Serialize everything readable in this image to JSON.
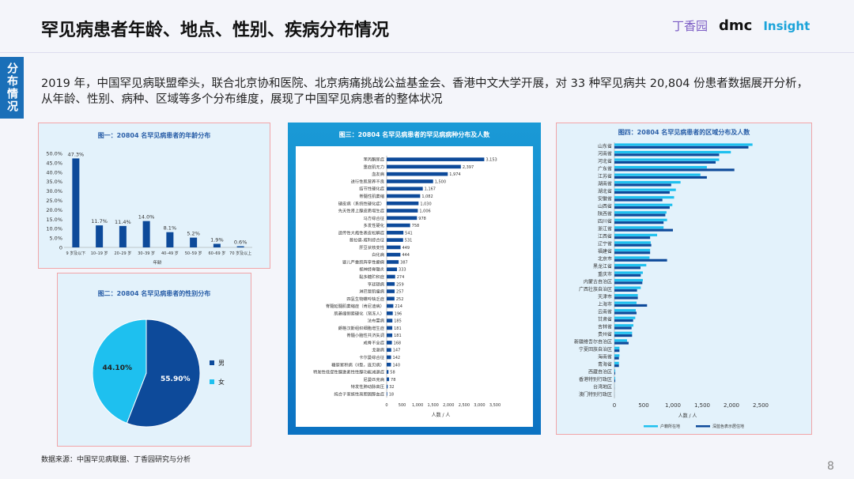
{
  "header": {
    "title": "罕见病患者年龄、地点、性别、疾病分布情况",
    "logos": [
      "丁香园",
      "dmc",
      "Insight"
    ]
  },
  "side_tab": "分布情况",
  "intro": "2019 年，中国罕见病联盟牵头，联合北京协和医院、北京病痛挑战公益基金会、香港中文大学开展，对 33 种罕见病共 20,804 份患者数据展开分析，从年龄、性别、病种、区域等多个分布维度，展现了中国罕见病患者的整体状况",
  "source": "数据来源：中国罕见病联盟、丁香园研究与分析",
  "page_number": "8",
  "colors": {
    "dark": "#0d4a9a",
    "light": "#1ec0ef",
    "accent": "#1a6fb8",
    "border": "#f1a5a8"
  },
  "chart_data": [
    {
      "type": "bar",
      "title": "图一：20804 名罕见病患者的年龄分布",
      "xlabel": "年龄",
      "ylim": [
        0,
        50
      ],
      "yticks": [
        "0",
        "5.0%",
        "10.0%",
        "15.0%",
        "20.0%",
        "25.0%",
        "30.0%",
        "35.0%",
        "40.0%",
        "45.0%",
        "50.0%"
      ],
      "categories": [
        "9 岁及以下",
        "10–19 岁",
        "20–29 岁",
        "30–39 岁",
        "40–49 岁",
        "50–59 岁",
        "60–69 岁",
        "70 岁及以上"
      ],
      "values": [
        47.3,
        11.7,
        11.4,
        14.0,
        8.1,
        5.2,
        1.9,
        0.6
      ],
      "labels": [
        "47.3%",
        "11.7%",
        "11.4%",
        "14.0%",
        "8.1%",
        "5.2%",
        "1.9%",
        "0.6%"
      ]
    },
    {
      "type": "pie",
      "title": "图二：20804 名罕见病患者的性别分布",
      "slices": [
        {
          "name": "男",
          "value": 55.9,
          "label": "55.90%",
          "color": "#0d4a9a"
        },
        {
          "name": "女",
          "value": 44.1,
          "label": "44.10%",
          "color": "#1ec0ef"
        }
      ]
    },
    {
      "type": "bar",
      "orientation": "horizontal",
      "title": "图三：20804 名罕见病患者的罕见病病种分布及人数",
      "xlabel": "人数 / 人",
      "xlim": [
        0,
        3500
      ],
      "xticks": [
        "0",
        "500",
        "1,000",
        "1,500",
        "2,000",
        "2,500",
        "3,000",
        "3,500"
      ],
      "categories": [
        "苯丙酮尿症",
        "重症肌无力",
        "血友病",
        "进行性肌营养不良",
        "结节性硬化症",
        "脊髓性肌萎缩",
        "硬皮病（系统性硬化症）",
        "先天性肾上腺皮质增生症",
        "马方综合征",
        "多发性硬化",
        "遗传性大疱性表皮松解症",
        "普拉德-威利综合征",
        "肝豆状核变性",
        "白化病",
        "婴儿严重肌阵挛性癫痫",
        "视神经脊髓炎",
        "黏多糖贮积症",
        "亨廷顿病",
        "淋巴管肌瘤病",
        "四氢生物蝶呤缺乏症",
        "脊髓延髓肌萎缩症（肯尼迪病）",
        "肌萎缩侧索硬化（渐冻人）",
        "法布雷病",
        "朗格汉斯组织细胞增生症",
        "脊髓小脑性共济失调",
        "成骨不全症",
        "戈谢病",
        "卡尔曼综合征",
        "糖原累积病（II型，庞贝病）",
        "特发性低促性腺激素性性腺功能减退症",
        "尼曼匹克病",
        "特发性肺动脉高压",
        "纯合子家族性高胆固醇血症"
      ],
      "values": [
        3153,
        2397,
        1974,
        1500,
        1167,
        1082,
        1030,
        1006,
        978,
        758,
        541,
        531,
        449,
        444,
        387,
        333,
        274,
        259,
        257,
        252,
        214,
        196,
        185,
        181,
        181,
        168,
        147,
        142,
        140,
        58,
        78,
        32,
        18
      ]
    },
    {
      "type": "bar",
      "orientation": "horizontal",
      "title": "图四：20804 名罕见病患者的区域分布及人数",
      "xlabel": "人数 / 人",
      "xlim": [
        0,
        2500
      ],
      "xticks": [
        "0",
        "500",
        "1,000",
        "1,500",
        "2,000",
        "2,500"
      ],
      "categories": [
        "山东省",
        "河南省",
        "河北省",
        "广东省",
        "江苏省",
        "湖南省",
        "湖北省",
        "安徽省",
        "山西省",
        "陕西省",
        "四川省",
        "浙江省",
        "江西省",
        "辽宁省",
        "福建省",
        "北京市",
        "黑龙江省",
        "重庆市",
        "内蒙古自治区",
        "广西壮族自治区",
        "天津市",
        "上海市",
        "云南省",
        "甘肃省",
        "吉林省",
        "贵州省",
        "新疆维吾尔自治区",
        "宁夏回族自治区",
        "海南省",
        "青海省",
        "西藏自治区",
        "香港特别行政区",
        "台湾地区",
        "澳门特别行政区"
      ],
      "series": [
        {
          "name": "户籍所在地",
          "color": "#1ec0ef",
          "values": [
            2360,
            1990,
            1790,
            1580,
            1470,
            1130,
            1050,
            1020,
            990,
            890,
            900,
            840,
            730,
            620,
            610,
            600,
            545,
            486,
            486,
            450,
            400,
            378,
            365,
            356,
            324,
            302,
            216,
            86,
            86,
            77,
            14,
            14,
            2,
            1
          ]
        },
        {
          "name": "深蓝色表示居住地",
          "color": "#0d4a9a",
          "values": [
            2290,
            1790,
            1730,
            2050,
            1580,
            970,
            945,
            820,
            945,
            870,
            840,
            1000,
            610,
            630,
            610,
            900,
            446,
            450,
            477,
            387,
            400,
            558,
            378,
            320,
            293,
            302,
            243,
            86,
            77,
            77,
            14,
            14,
            2,
            1
          ]
        }
      ]
    }
  ]
}
